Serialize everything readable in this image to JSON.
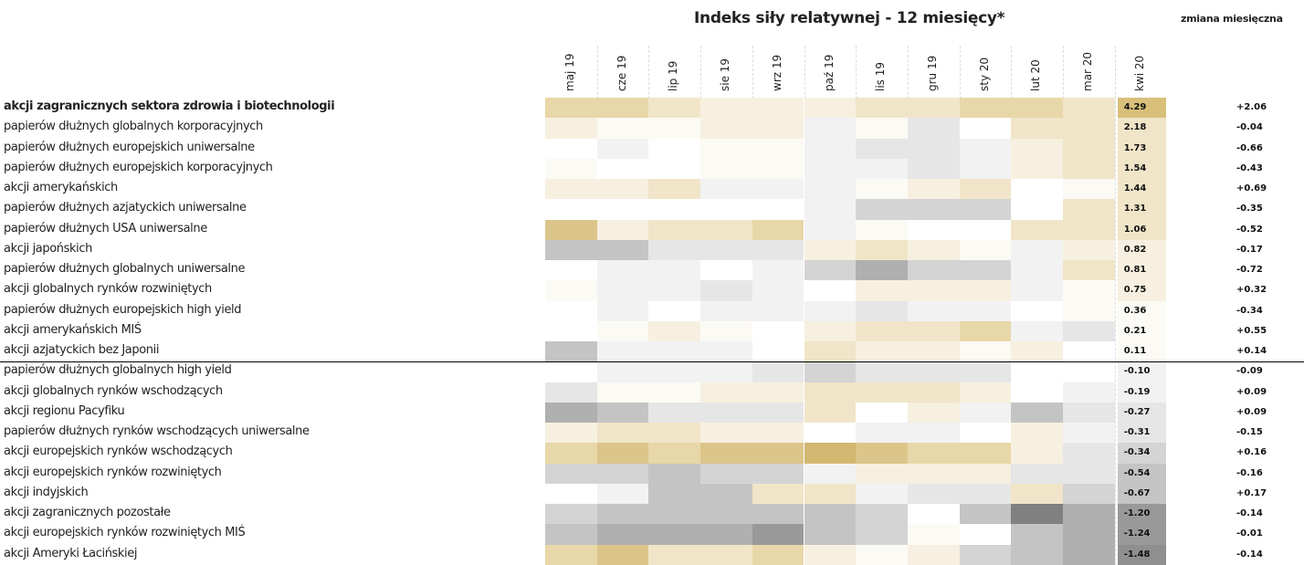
{
  "title": "Indeks siły relatywnej - 12 miesięcy*",
  "change_header": "zmiana miesięczna",
  "months": [
    "maj 19",
    "cze 19",
    "lip 19",
    "sie 19",
    "wrz 19",
    "paź 19",
    "lis 19",
    "gru 19",
    "sty 20",
    "lut 20",
    "mar 20",
    "kwi 20"
  ],
  "rows": [
    {
      "label": "akcji zagranicznych sektora zdrowia i biotechnologii",
      "value": "4.29",
      "change": "+2.06",
      "colors": [
        "#e8d7a8",
        "#e8d7a8",
        "#f0e5c8",
        "#f7f0e0",
        "#f7f0e0",
        "#f7f0e0",
        "#f0e5c8",
        "#f0e5c8",
        "#e8d7a8",
        "#e8d7a8",
        "#f0e5c8",
        "#d9c07a"
      ]
    },
    {
      "label": "papierów dłużnych globalnych korporacyjnych",
      "value": "2.18",
      "change": "-0.04",
      "colors": [
        "#f7f0e0",
        "#fcfaf5",
        "#fcfaf5",
        "#f7f0e0",
        "#f7f0e0",
        "#f2f2f2",
        "#fcfaf5",
        "#e6e6e6",
        "#ffffff",
        "#f0e5c8",
        "#f0e5c8",
        "#f0e5c8"
      ]
    },
    {
      "label": "papierów dłużnych europejskich uniwersalne",
      "value": "1.73",
      "change": "-0.66",
      "colors": [
        "#ffffff",
        "#f2f2f2",
        "#ffffff",
        "#fcfaf5",
        "#fcfaf5",
        "#f2f2f2",
        "#e6e6e6",
        "#e6e6e6",
        "#f2f2f2",
        "#f7f0e0",
        "#f0e5c8",
        "#f0e5c8"
      ]
    },
    {
      "label": "papierów dłużnych europejskich korporacyjnych",
      "value": "1.54",
      "change": "-0.43",
      "colors": [
        "#fcfaf5",
        "#ffffff",
        "#ffffff",
        "#fcfaf5",
        "#fcfaf5",
        "#f2f2f2",
        "#f2f2f2",
        "#e6e6e6",
        "#f2f2f2",
        "#f7f0e0",
        "#f0e5c8",
        "#f0e5c8"
      ]
    },
    {
      "label": "akcji amerykańskich",
      "value": "1.44",
      "change": "+0.69",
      "colors": [
        "#f7f0e0",
        "#f7f0e0",
        "#f0e5c8",
        "#f2f2f2",
        "#f2f2f2",
        "#f2f2f2",
        "#fcfaf5",
        "#f7f0e0",
        "#f0e5c8",
        "#ffffff",
        "#fcfaf5",
        "#f0e5c8"
      ]
    },
    {
      "label": "papierów dłużnych azjatyckich uniwersalne",
      "value": "1.31",
      "change": "-0.35",
      "colors": [
        "#ffffff",
        "#ffffff",
        "#ffffff",
        "#ffffff",
        "#ffffff",
        "#f2f2f2",
        "#d4d4d4",
        "#d4d4d4",
        "#d4d4d4",
        "#ffffff",
        "#f0e5c8",
        "#f0e5c8"
      ]
    },
    {
      "label": "papierów dłużnych USA uniwersalne",
      "value": "1.06",
      "change": "-0.52",
      "colors": [
        "#dcc58a",
        "#f7f0e0",
        "#f0e5c8",
        "#f0e5c8",
        "#e8d7a8",
        "#f2f2f2",
        "#fcfaf5",
        "#ffffff",
        "#ffffff",
        "#f0e5c8",
        "#f0e5c8",
        "#f0e5c8"
      ]
    },
    {
      "label": "akcji japońskich",
      "value": "0.82",
      "change": "-0.17",
      "colors": [
        "#c4c4c4",
        "#c4c4c4",
        "#e6e6e6",
        "#e6e6e6",
        "#e6e6e6",
        "#f7f0e0",
        "#f0e5c8",
        "#f7f0e0",
        "#fcfaf5",
        "#f2f2f2",
        "#f7f0e0",
        "#f7f0e0"
      ]
    },
    {
      "label": "papierów dłużnych globalnych uniwersalne",
      "value": "0.81",
      "change": "-0.72",
      "colors": [
        "#ffffff",
        "#f2f2f2",
        "#f2f2f2",
        "#ffffff",
        "#f2f2f2",
        "#d4d4d4",
        "#b0b0b0",
        "#d4d4d4",
        "#d4d4d4",
        "#f2f2f2",
        "#f0e5c8",
        "#f7f0e0"
      ]
    },
    {
      "label": "akcji globalnych rynków rozwiniętych",
      "value": "0.75",
      "change": "+0.32",
      "colors": [
        "#fcfaf5",
        "#f2f2f2",
        "#f2f2f2",
        "#e6e6e6",
        "#f2f2f2",
        "#ffffff",
        "#f7f0e0",
        "#f7f0e0",
        "#f7f0e0",
        "#f2f2f2",
        "#fcfaf5",
        "#f7f0e0"
      ]
    },
    {
      "label": "papierów dłużnych europejskich high yield",
      "value": "0.36",
      "change": "-0.34",
      "colors": [
        "#ffffff",
        "#f2f2f2",
        "#ffffff",
        "#f2f2f2",
        "#f2f2f2",
        "#f2f2f2",
        "#e6e6e6",
        "#f2f2f2",
        "#f2f2f2",
        "#ffffff",
        "#fcfaf5",
        "#fcfaf5"
      ]
    },
    {
      "label": "akcji amerykańskich MIŚ",
      "value": "0.21",
      "change": "+0.55",
      "colors": [
        "#ffffff",
        "#fcfaf5",
        "#f7f0e0",
        "#fcfaf5",
        "#ffffff",
        "#f7f0e0",
        "#f0e5c8",
        "#f0e5c8",
        "#e8d7a8",
        "#f2f2f2",
        "#e6e6e6",
        "#fcfaf5"
      ]
    },
    {
      "label": "akcji azjatyckich bez Japonii",
      "value": "0.11",
      "change": "+0.14",
      "colors": [
        "#c4c4c4",
        "#f2f2f2",
        "#f2f2f2",
        "#f2f2f2",
        "#ffffff",
        "#f0e5c8",
        "#f7f0e0",
        "#f7f0e0",
        "#fcfaf5",
        "#f7f0e0",
        "#ffffff",
        "#fcfaf5"
      ]
    },
    {
      "label": "papierów dłużnych globalnych high yield",
      "value": "-0.10",
      "change": "-0.09",
      "colors": [
        "#ffffff",
        "#f2f2f2",
        "#f2f2f2",
        "#f2f2f2",
        "#e6e6e6",
        "#d4d4d4",
        "#e6e6e6",
        "#e6e6e6",
        "#e6e6e6",
        "#ffffff",
        "#ffffff",
        "#f2f2f2"
      ]
    },
    {
      "label": "akcji globalnych rynków wschodzących",
      "value": "-0.19",
      "change": "+0.09",
      "colors": [
        "#e6e6e6",
        "#fcfaf5",
        "#fcfaf5",
        "#f7f0e0",
        "#f7f0e0",
        "#f0e5c8",
        "#f0e5c8",
        "#f0e5c8",
        "#f7f0e0",
        "#ffffff",
        "#f2f2f2",
        "#f2f2f2"
      ]
    },
    {
      "label": "akcji regionu Pacyfiku",
      "value": "-0.27",
      "change": "+0.09",
      "colors": [
        "#b0b0b0",
        "#c4c4c4",
        "#e6e6e6",
        "#e6e6e6",
        "#e6e6e6",
        "#f0e5c8",
        "#ffffff",
        "#f7f0e0",
        "#f2f2f2",
        "#c4c4c4",
        "#e6e6e6",
        "#e6e6e6"
      ]
    },
    {
      "label": "papierów dłużnych rynków wschodzących uniwersalne",
      "value": "-0.31",
      "change": "-0.15",
      "colors": [
        "#f7f0e0",
        "#f0e5c8",
        "#f0e5c8",
        "#f7f0e0",
        "#f7f0e0",
        "#ffffff",
        "#f2f2f2",
        "#f2f2f2",
        "#ffffff",
        "#f7f0e0",
        "#f2f2f2",
        "#e6e6e6"
      ]
    },
    {
      "label": "akcji europejskich rynków wschodzących",
      "value": "-0.34",
      "change": "+0.16",
      "colors": [
        "#e8d7a8",
        "#dcc58a",
        "#e8d7a8",
        "#dcc58a",
        "#dcc58a",
        "#d2b870",
        "#dcc58a",
        "#e8d7a8",
        "#e8d7a8",
        "#f7f0e0",
        "#e6e6e6",
        "#d4d4d4"
      ]
    },
    {
      "label": "akcji europejskich rynków rozwiniętych",
      "value": "-0.54",
      "change": "-0.16",
      "colors": [
        "#d4d4d4",
        "#d4d4d4",
        "#c4c4c4",
        "#d4d4d4",
        "#d4d4d4",
        "#f2f2f2",
        "#f7f0e0",
        "#f7f0e0",
        "#f7f0e0",
        "#e6e6e6",
        "#e6e6e6",
        "#c4c4c4"
      ]
    },
    {
      "label": "akcji indyjskich",
      "value": "-0.67",
      "change": "+0.17",
      "colors": [
        "#ffffff",
        "#f2f2f2",
        "#c4c4c4",
        "#c4c4c4",
        "#f0e5c8",
        "#f0e5c8",
        "#f2f2f2",
        "#e6e6e6",
        "#e6e6e6",
        "#f0e5c8",
        "#d4d4d4",
        "#c4c4c4"
      ]
    },
    {
      "label": "akcji zagranicznych pozostałe",
      "value": "-1.20",
      "change": "-0.14",
      "colors": [
        "#d4d4d4",
        "#c4c4c4",
        "#c4c4c4",
        "#c4c4c4",
        "#c4c4c4",
        "#c4c4c4",
        "#d4d4d4",
        "#ffffff",
        "#c4c4c4",
        "#808080",
        "#b0b0b0",
        "#999999"
      ]
    },
    {
      "label": "akcji europejskich rynków rozwiniętych MIŚ",
      "value": "-1.24",
      "change": "-0.01",
      "colors": [
        "#c4c4c4",
        "#b0b0b0",
        "#b0b0b0",
        "#b0b0b0",
        "#999999",
        "#c4c4c4",
        "#d4d4d4",
        "#fcfaf5",
        "#ffffff",
        "#c4c4c4",
        "#b0b0b0",
        "#999999"
      ]
    },
    {
      "label": "akcji Ameryki Łacińskiej",
      "value": "-1.48",
      "change": "-0.14",
      "colors": [
        "#e8d7a8",
        "#dcc58a",
        "#f0e5c8",
        "#f0e5c8",
        "#e8d7a8",
        "#f7f0e0",
        "#fcfaf5",
        "#f7f0e0",
        "#d4d4d4",
        "#c4c4c4",
        "#b0b0b0",
        "#8f8f8f"
      ]
    }
  ]
}
